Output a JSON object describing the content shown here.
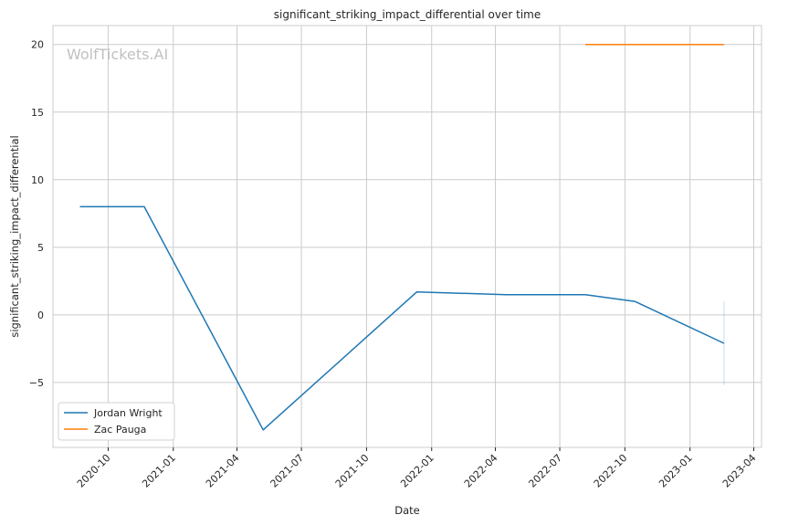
{
  "chart_data": {
    "type": "line",
    "title": "significant_striking_impact_differential over time",
    "xlabel": "Date",
    "ylabel": "significant_striking_impact_differential",
    "watermark": "WolfTickets.AI",
    "xlim": [
      "2020-07-15",
      "2023-04-12"
    ],
    "ylim": [
      -9.8,
      21.4
    ],
    "x_ticks": [
      "2020-10",
      "2021-01",
      "2021-04",
      "2021-07",
      "2021-10",
      "2022-01",
      "2022-04",
      "2022-07",
      "2022-10",
      "2023-01",
      "2023-04"
    ],
    "y_ticks": [
      -5,
      0,
      5,
      10,
      15,
      20
    ],
    "y_tick_labels": [
      "−5",
      "0",
      "5",
      "10",
      "15",
      "20"
    ],
    "grid": true,
    "legend": "lower-left",
    "series": [
      {
        "name": "Jordan Wright",
        "color": "#1f77b4",
        "points": [
          {
            "x": "2020-08-22",
            "y": 8.0
          },
          {
            "x": "2020-11-21",
            "y": 8.0
          },
          {
            "x": "2021-05-08",
            "y": -8.5
          },
          {
            "x": "2021-12-11",
            "y": 1.7
          },
          {
            "x": "2022-04-16",
            "y": 1.5
          },
          {
            "x": "2022-08-06",
            "y": 1.5
          },
          {
            "x": "2022-10-15",
            "y": 1.0
          },
          {
            "x": "2023-02-18",
            "y": -2.1
          }
        ],
        "band": {
          "x": "2023-02-18",
          "low": -5.2,
          "high": 1.0
        }
      },
      {
        "name": "Zac Pauga",
        "color": "#ff7f0e",
        "points": [
          {
            "x": "2022-08-06",
            "y": 20.0
          },
          {
            "x": "2023-02-18",
            "y": 20.0
          }
        ]
      }
    ]
  }
}
